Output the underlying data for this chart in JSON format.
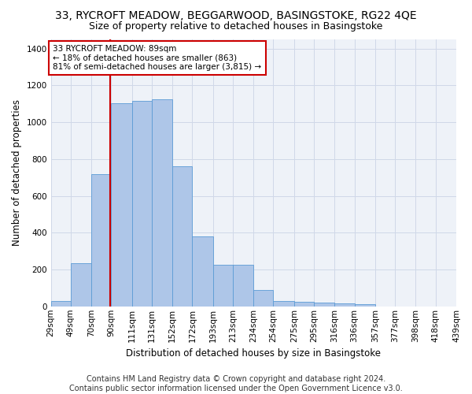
{
  "title": "33, RYCROFT MEADOW, BEGGARWOOD, BASINGSTOKE, RG22 4QE",
  "subtitle": "Size of property relative to detached houses in Basingstoke",
  "xlabel": "Distribution of detached houses by size in Basingstoke",
  "ylabel": "Number of detached properties",
  "bin_labels": [
    "29sqm",
    "49sqm",
    "70sqm",
    "90sqm",
    "111sqm",
    "131sqm",
    "152sqm",
    "172sqm",
    "193sqm",
    "213sqm",
    "234sqm",
    "254sqm",
    "275sqm",
    "295sqm",
    "316sqm",
    "336sqm",
    "357sqm",
    "377sqm",
    "398sqm",
    "418sqm",
    "439sqm"
  ],
  "bin_edges": [
    29,
    49,
    70,
    90,
    111,
    131,
    152,
    172,
    193,
    213,
    234,
    254,
    275,
    295,
    316,
    336,
    357,
    377,
    398,
    418,
    439
  ],
  "bar_heights": [
    30,
    235,
    720,
    1105,
    1115,
    1125,
    760,
    380,
    225,
    225,
    90,
    30,
    25,
    22,
    15,
    10,
    0,
    0,
    0,
    0
  ],
  "bar_color": "#aec6e8",
  "bar_edge_color": "#5b9bd5",
  "property_size": 89,
  "vline_color": "#cc0000",
  "annotation_text": "33 RYCROFT MEADOW: 89sqm\n← 18% of detached houses are smaller (863)\n81% of semi-detached houses are larger (3,815) →",
  "annotation_box_color": "#cc0000",
  "ylim": [
    0,
    1450
  ],
  "yticks": [
    0,
    200,
    400,
    600,
    800,
    1000,
    1200,
    1400
  ],
  "grid_color": "#d0d8e8",
  "background_color": "#eef2f8",
  "footer_line1": "Contains HM Land Registry data © Crown copyright and database right 2024.",
  "footer_line2": "Contains public sector information licensed under the Open Government Licence v3.0.",
  "title_fontsize": 10,
  "subtitle_fontsize": 9,
  "xlabel_fontsize": 8.5,
  "ylabel_fontsize": 8.5,
  "tick_fontsize": 7.5,
  "annotation_fontsize": 7.5,
  "footer_fontsize": 7
}
